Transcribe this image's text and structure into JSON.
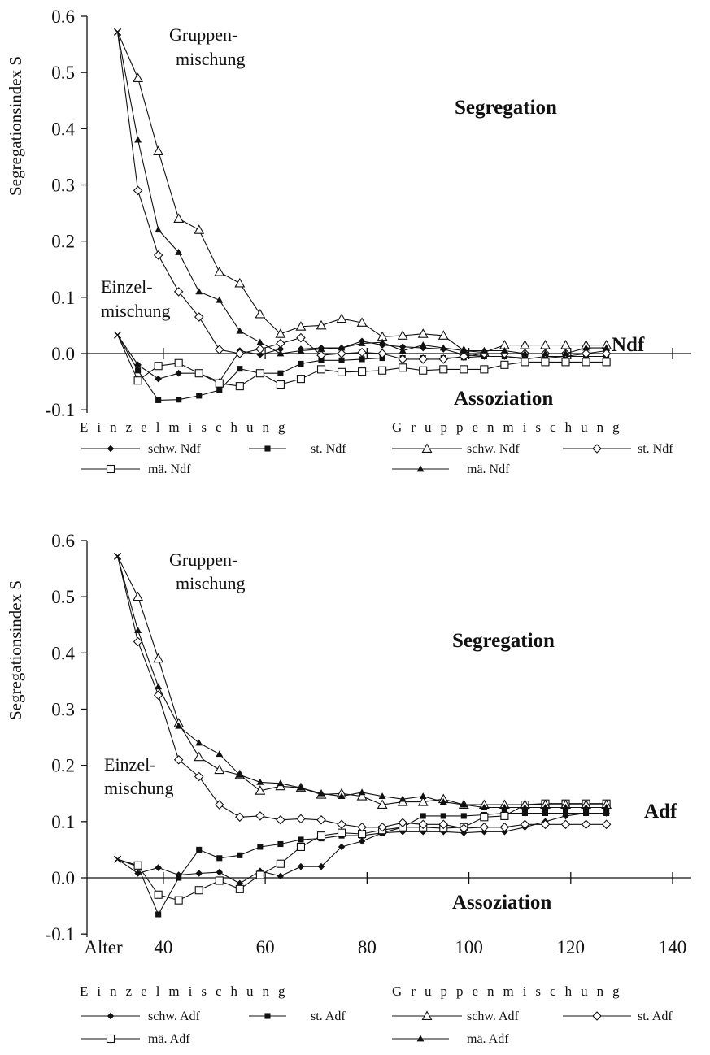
{
  "chart_data": [
    {
      "type": "line",
      "title": "",
      "ylabel": "Segregationsindex S",
      "xlabel": "",
      "ylim": [
        -0.1,
        0.6
      ],
      "xlim": [
        25,
        140
      ],
      "yticks": [
        "0.6",
        "0.5",
        "0.4",
        "0.3",
        "0.2",
        "0.1",
        "0.0",
        "-0.1"
      ],
      "ytick_values": [
        0.6,
        0.5,
        0.4,
        0.3,
        0.2,
        0.1,
        0.0,
        -0.1
      ],
      "xtick_values": [
        40,
        60,
        80,
        100,
        120,
        140
      ],
      "xticks": [],
      "x": [
        31,
        35,
        39,
        43,
        47,
        51,
        55,
        59,
        63,
        67,
        71,
        75,
        79,
        83,
        87,
        91,
        95,
        99,
        103,
        107,
        111,
        115,
        119,
        123,
        127
      ],
      "annotations": {
        "gruppen_1": "Gruppen-",
        "gruppen_2": "mischung",
        "einzel_1": "Einzel-",
        "einzel_2": "mischung",
        "segregation": "Segregation",
        "assoziation": "Assoziation",
        "panel_label": "Ndf"
      },
      "group_labels": {
        "left": "Einzelmischung",
        "right": "Gruppenmischung"
      },
      "series": [
        {
          "name": "schw. Ndf",
          "group": "Einzelmischung",
          "marker": "diamond-filled",
          "values": [
            0.033,
            -0.02,
            -0.045,
            -0.035,
            -0.035,
            -0.05,
            0.005,
            -0.002,
            0.008,
            0.008,
            0.01,
            0.01,
            0.022,
            0.015,
            0.012,
            0.01,
            0.008,
            -0.002,
            -0.005,
            -0.005,
            -0.01,
            -0.005,
            -0.005,
            0.0,
            0.005
          ]
        },
        {
          "name": "st. Ndf",
          "group": "Einzelmischung",
          "marker": "square-filled",
          "values": [
            0.033,
            -0.03,
            -0.083,
            -0.082,
            -0.075,
            -0.065,
            -0.027,
            -0.035,
            -0.035,
            -0.018,
            -0.012,
            -0.012,
            -0.01,
            -0.008,
            -0.008,
            -0.008,
            -0.008,
            -0.007,
            -0.005,
            -0.005,
            -0.008,
            -0.008,
            -0.005,
            -0.005,
            -0.005
          ]
        },
        {
          "name": "mä. Ndf",
          "group": "Einzelmischung",
          "marker": "square-open",
          "values": [
            0.033,
            -0.048,
            -0.022,
            -0.017,
            -0.035,
            -0.053,
            -0.058,
            -0.035,
            -0.055,
            -0.045,
            -0.028,
            -0.033,
            -0.032,
            -0.03,
            -0.025,
            -0.03,
            -0.028,
            -0.028,
            -0.028,
            -0.02,
            -0.015,
            -0.015,
            -0.015,
            -0.015,
            -0.015
          ]
        },
        {
          "name": "schw. Ndf",
          "group": "Gruppenmischung",
          "marker": "triangle-open",
          "values": [
            0.572,
            0.49,
            0.36,
            0.24,
            0.22,
            0.145,
            0.125,
            0.07,
            0.035,
            0.048,
            0.05,
            0.062,
            0.055,
            0.03,
            0.032,
            0.035,
            0.032,
            0.005,
            0.002,
            0.015,
            0.015,
            0.015,
            0.015,
            0.015,
            0.015
          ]
        },
        {
          "name": "st. Ndf",
          "group": "Gruppenmischung",
          "marker": "diamond-open",
          "values": [
            0.572,
            0.29,
            0.175,
            0.11,
            0.065,
            0.007,
            0.0,
            0.008,
            0.018,
            0.028,
            -0.003,
            0.0,
            0.002,
            0.0,
            -0.01,
            -0.01,
            -0.01,
            -0.005,
            0.0,
            0.0,
            0.0,
            0.0,
            0.0,
            0.0,
            0.0
          ]
        },
        {
          "name": "mä. Ndf",
          "group": "Gruppenmischung",
          "marker": "triangle-filled",
          "values": [
            0.572,
            0.38,
            0.22,
            0.18,
            0.11,
            0.095,
            0.04,
            0.02,
            0.0,
            0.005,
            0.008,
            0.01,
            0.018,
            0.02,
            0.005,
            0.015,
            0.01,
            0.005,
            0.005,
            0.005,
            0.0,
            0.0,
            0.0,
            0.01,
            0.01
          ]
        }
      ]
    },
    {
      "type": "line",
      "title": "",
      "ylabel": "Segregationsindex S",
      "xlabel": "Alter",
      "ylim": [
        -0.1,
        0.6
      ],
      "xlim": [
        25,
        140
      ],
      "yticks": [
        "0.6",
        "0.5",
        "0.4",
        "0.3",
        "0.2",
        "0.1",
        "0.0",
        "-0.1"
      ],
      "ytick_values": [
        0.6,
        0.5,
        0.4,
        0.3,
        0.2,
        0.1,
        0.0,
        -0.1
      ],
      "xtick_values": [
        40,
        60,
        80,
        100,
        120,
        140
      ],
      "xticks": [
        "40",
        "60",
        "80",
        "100",
        "120",
        "140"
      ],
      "x": [
        31,
        35,
        39,
        43,
        47,
        51,
        55,
        59,
        63,
        67,
        71,
        75,
        79,
        83,
        87,
        91,
        95,
        99,
        103,
        107,
        111,
        115,
        119,
        123,
        127
      ],
      "annotations": {
        "gruppen_1": "Gruppen-",
        "gruppen_2": "mischung",
        "einzel_1": "Einzel-",
        "einzel_2": "mischung",
        "segregation": "Segregation",
        "assoziation": "Assoziation",
        "panel_label": "Adf"
      },
      "group_labels": {
        "left": "Einzelmischung",
        "right": "Gruppenmischung"
      },
      "series": [
        {
          "name": "schw. Adf",
          "group": "Einzelmischung",
          "marker": "diamond-filled",
          "values": [
            0.033,
            0.008,
            0.018,
            0.005,
            0.008,
            0.01,
            -0.01,
            0.012,
            0.003,
            0.02,
            0.02,
            0.055,
            0.065,
            0.08,
            0.082,
            0.082,
            0.082,
            0.08,
            0.082,
            0.082,
            0.09,
            0.1,
            0.11,
            0.115,
            0.115
          ]
        },
        {
          "name": "st. Adf",
          "group": "Einzelmischung",
          "marker": "square-filled",
          "values": [
            0.033,
            0.02,
            -0.065,
            0.0,
            0.05,
            0.035,
            0.04,
            0.055,
            0.06,
            0.068,
            0.07,
            0.075,
            0.075,
            0.08,
            0.09,
            0.11,
            0.11,
            0.11,
            0.112,
            0.115,
            0.115,
            0.115,
            0.115,
            0.115,
            0.115
          ]
        },
        {
          "name": "mä. Adf",
          "group": "Einzelmischung",
          "marker": "square-open",
          "values": [
            0.033,
            0.022,
            -0.03,
            -0.04,
            -0.022,
            -0.005,
            -0.02,
            0.005,
            0.025,
            0.055,
            0.075,
            0.08,
            0.078,
            0.085,
            0.09,
            0.09,
            0.088,
            0.09,
            0.108,
            0.11,
            0.13,
            0.132,
            0.132,
            0.132,
            0.132
          ]
        },
        {
          "name": "schw. Adf",
          "group": "Gruppenmischung",
          "marker": "triangle-open",
          "values": [
            0.572,
            0.5,
            0.39,
            0.275,
            0.215,
            0.192,
            0.183,
            0.155,
            0.163,
            0.16,
            0.148,
            0.15,
            0.145,
            0.13,
            0.135,
            0.135,
            0.14,
            0.13,
            0.13,
            0.13,
            0.13,
            0.13,
            0.13,
            0.13,
            0.13
          ]
        },
        {
          "name": "st. Adf",
          "group": "Gruppenmischung",
          "marker": "diamond-open",
          "values": [
            0.572,
            0.42,
            0.325,
            0.21,
            0.18,
            0.13,
            0.108,
            0.11,
            0.103,
            0.105,
            0.103,
            0.095,
            0.09,
            0.09,
            0.098,
            0.095,
            0.095,
            0.088,
            0.09,
            0.09,
            0.095,
            0.095,
            0.095,
            0.095,
            0.095
          ]
        },
        {
          "name": "mä. Adf",
          "group": "Gruppenmischung",
          "marker": "triangle-filled",
          "values": [
            0.572,
            0.44,
            0.34,
            0.27,
            0.24,
            0.22,
            0.183,
            0.17,
            0.168,
            0.16,
            0.15,
            0.145,
            0.152,
            0.145,
            0.14,
            0.145,
            0.135,
            0.13,
            0.125,
            0.125,
            0.125,
            0.125,
            0.125,
            0.125,
            0.125
          ]
        }
      ]
    }
  ]
}
